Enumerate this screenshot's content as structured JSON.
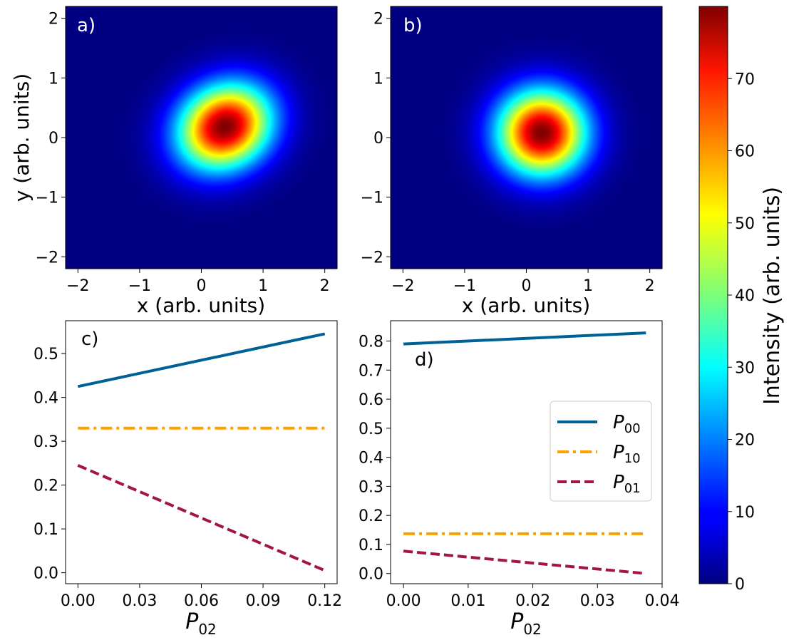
{
  "chart_data": [
    {
      "id": "a",
      "type": "heatmap",
      "panel_label": "a)",
      "xlabel": "x (arb. units)",
      "ylabel": "y (arb. units)",
      "xlim": [
        -2.2,
        2.2
      ],
      "ylim": [
        -2.2,
        2.2
      ],
      "xticks": [
        -2,
        -1,
        0,
        1,
        2
      ],
      "yticks": [
        -2,
        -1,
        0,
        1,
        2
      ],
      "colormap": "jet",
      "peak": {
        "x": 0.38,
        "y": 0.18,
        "value": 80
      },
      "spot": {
        "sigma_major": 0.55,
        "sigma_minor": 0.47,
        "angle_deg": 35
      }
    },
    {
      "id": "b",
      "type": "heatmap",
      "panel_label": "b)",
      "xlabel": "x (arb. units)",
      "ylabel": "",
      "xlim": [
        -2.2,
        2.2
      ],
      "ylim": [
        -2.2,
        2.2
      ],
      "xticks": [
        -2,
        -1,
        0,
        1,
        2
      ],
      "yticks": [
        -2,
        -1,
        0,
        1,
        2
      ],
      "colormap": "jet",
      "peak": {
        "x": 0.25,
        "y": 0.08,
        "value": 80
      },
      "spot": {
        "sigma_major": 0.5,
        "sigma_minor": 0.5,
        "angle_deg": 0
      }
    },
    {
      "id": "c",
      "type": "line",
      "panel_label": "c)",
      "xlabel_main": "P",
      "xlabel_sub": "02",
      "xlim": [
        -0.006,
        0.126
      ],
      "ylim": [
        -0.025,
        0.575
      ],
      "xticks": [
        0,
        0.03,
        0.06,
        0.09,
        0.12
      ],
      "xtick_labels": [
        "0.00",
        "0.03",
        "0.06",
        "0.09",
        "0.12"
      ],
      "yticks": [
        0,
        0.1,
        0.2,
        0.3,
        0.4,
        0.5
      ],
      "ytick_labels": [
        "0.0",
        "0.1",
        "0.2",
        "0.3",
        "0.4",
        "0.5"
      ],
      "series": [
        {
          "name": "P00",
          "label_main": "P",
          "label_sub": "00",
          "color": "#006196",
          "dash": "solid",
          "x": [
            0,
            0.12
          ],
          "y": [
            0.425,
            0.545
          ]
        },
        {
          "name": "P10",
          "label_main": "P",
          "label_sub": "10",
          "color": "#FFA000",
          "dash": "dashdot",
          "x": [
            0,
            0.12
          ],
          "y": [
            0.33,
            0.33
          ]
        },
        {
          "name": "P01",
          "label_main": "P",
          "label_sub": "01",
          "color": "#A2163F",
          "dash": "dashed",
          "x": [
            0,
            0.12
          ],
          "y": [
            0.245,
            0.005
          ]
        }
      ]
    },
    {
      "id": "d",
      "type": "line",
      "panel_label": "d)",
      "xlabel_main": "P",
      "xlabel_sub": "02",
      "xlim": [
        -0.002,
        0.04
      ],
      "ylim": [
        -0.035,
        0.87
      ],
      "xticks": [
        0,
        0.01,
        0.02,
        0.03,
        0.04
      ],
      "xtick_labels": [
        "0.00",
        "0.01",
        "0.02",
        "0.03",
        "0.04"
      ],
      "yticks": [
        0,
        0.1,
        0.2,
        0.3,
        0.4,
        0.5,
        0.6,
        0.7,
        0.8
      ],
      "ytick_labels": [
        "0.0",
        "0.1",
        "0.2",
        "0.3",
        "0.4",
        "0.5",
        "0.6",
        "0.7",
        "0.8"
      ],
      "legend": "center-right",
      "series": [
        {
          "name": "P00",
          "label_main": "P",
          "label_sub": "00",
          "color": "#006196",
          "dash": "solid",
          "x": [
            0,
            0.0375
          ],
          "y": [
            0.79,
            0.828
          ]
        },
        {
          "name": "P10",
          "label_main": "P",
          "label_sub": "10",
          "color": "#FFA000",
          "dash": "dashdot",
          "x": [
            0,
            0.0375
          ],
          "y": [
            0.137,
            0.137
          ]
        },
        {
          "name": "P01",
          "label_main": "P",
          "label_sub": "01",
          "color": "#A2163F",
          "dash": "dashed",
          "x": [
            0,
            0.0375
          ],
          "y": [
            0.077,
            0.0
          ]
        }
      ]
    }
  ],
  "colorbar": {
    "label": "Intensity (arb. units)",
    "min": 0,
    "max": 80,
    "ticks": [
      0,
      10,
      20,
      30,
      40,
      50,
      60,
      70
    ],
    "colormap": "jet"
  }
}
